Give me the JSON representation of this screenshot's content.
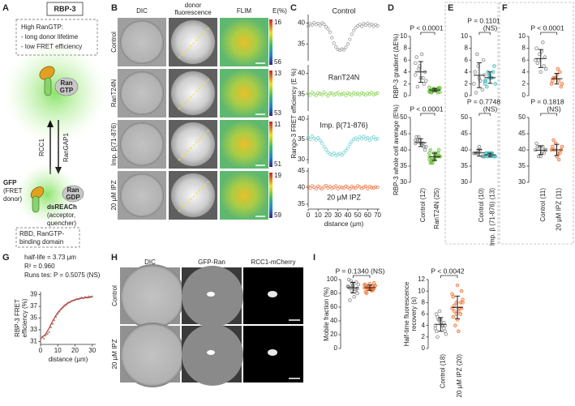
{
  "panel_labels": [
    "A",
    "B",
    "C",
    "D",
    "E",
    "F",
    "G",
    "H",
    "I"
  ],
  "panels": {
    "A": {
      "title": "RBP-3",
      "state_box": [
        "High RanGTP:",
        "- long donor lifetime",
        "- low FRET efficiency"
      ],
      "ran_gtp": [
        "Ran",
        "GTP"
      ],
      "rcc1": "RCC1",
      "rangap1": "RanGAP1",
      "gfp": [
        "GFP",
        "(FRET",
        "donor)"
      ],
      "ran_gdp": [
        "Ran",
        "GDP"
      ],
      "dsreach": [
        "dsREACh",
        "(acceptor,",
        "quencher)"
      ],
      "rbd": [
        "RBD, RanGTP-",
        "binding domain"
      ]
    },
    "B": {
      "columns": [
        [
          "DIC"
        ],
        [
          "donor",
          "fluorescence"
        ],
        [
          "FLIM"
        ]
      ],
      "colorbar_title": "E(%)",
      "rows": [
        "Control",
        "RanT24N",
        "Imp. β(71-876)",
        "20 µM IPZ"
      ],
      "colorbar_ranges": [
        [
          16,
          56
        ],
        [
          13,
          53
        ],
        [
          11,
          51
        ],
        [
          19,
          59
        ]
      ]
    },
    "H": {
      "columns": [
        "DIC",
        "GFP-Ran",
        "RCC1-mCherry"
      ],
      "rows": [
        "Control",
        "20 µM IPZ"
      ]
    }
  },
  "chart_data": [
    {
      "type": "scatter-panels",
      "ylabel": "Rango-3 FRET efficiency (E %)",
      "xlabel": "distance (µm)",
      "xlim": [
        0,
        72
      ],
      "xticks": [
        0,
        10,
        20,
        30,
        40,
        50,
        60,
        70
      ],
      "x": [
        0,
        2,
        4,
        6,
        8,
        10,
        12,
        14,
        16,
        18,
        20,
        22,
        24,
        26,
        28,
        30,
        32,
        34,
        36,
        38,
        40,
        42,
        44,
        46,
        48,
        50,
        52,
        54,
        56,
        58,
        60,
        62,
        64,
        66,
        68,
        70
      ],
      "series": [
        {
          "name": "Control",
          "color": "#a0a0a0",
          "ylim": [
            31,
            42
          ],
          "yticks": [
            35,
            40
          ],
          "values": [
            39.2,
            39.8,
            39.5,
            40.1,
            39.6,
            39.9,
            39.4,
            40.0,
            39.7,
            39.1,
            38.6,
            37.8,
            36.5,
            35.2,
            34.3,
            33.7,
            33.5,
            33.8,
            33.6,
            34.2,
            35.0,
            36.1,
            37.3,
            38.2,
            38.9,
            39.3,
            39.6,
            39.2,
            39.8,
            39.5,
            39.9,
            39.4,
            39.7,
            39.2,
            39.6,
            39.3
          ]
        },
        {
          "name": "RanT24N",
          "color": "#8fd45a",
          "ylim": [
            31,
            42
          ],
          "yticks": [
            35,
            40
          ],
          "values": [
            35.2,
            34.8,
            35.4,
            35.0,
            34.7,
            35.3,
            35.1,
            34.9,
            35.5,
            35.0,
            34.6,
            35.2,
            35.3,
            34.8,
            35.1,
            35.4,
            34.9,
            35.0,
            35.2,
            34.7,
            35.3,
            35.1,
            34.8,
            35.4,
            35.0,
            35.2,
            34.9,
            35.3,
            35.1,
            34.8,
            35.2,
            35.0,
            35.4,
            34.9,
            35.1,
            35.3
          ]
        },
        {
          "name": "Imp. β(71-876)",
          "color": "#7dd3d3",
          "ylim": [
            29,
            41
          ],
          "yticks": [
            30,
            35,
            40
          ],
          "values": [
            35.5,
            35.0,
            35.8,
            35.2,
            34.9,
            35.4,
            34.8,
            34.1,
            33.2,
            32.5,
            31.8,
            31.4,
            31.2,
            31.6,
            31.0,
            31.3,
            31.5,
            31.1,
            31.7,
            32.2,
            32.9,
            33.8,
            34.5,
            35.0,
            35.3,
            34.9,
            35.6,
            35.2,
            35.7,
            35.1,
            35.4,
            34.8,
            35.3,
            35.6,
            35.0,
            35.2
          ]
        },
        {
          "name": "20 µM IPZ",
          "color": "#f07a4a",
          "ylim": [
            34,
            46
          ],
          "yticks": [
            35,
            40,
            45
          ],
          "values": [
            40.3,
            39.8,
            40.5,
            40.1,
            39.7,
            40.4,
            40.0,
            39.6,
            40.2,
            40.6,
            39.9,
            40.3,
            39.8,
            40.1,
            40.5,
            39.7,
            40.2,
            40.0,
            39.8,
            40.4,
            40.1,
            39.6,
            40.3,
            40.0,
            39.9,
            40.5,
            40.2,
            39.8,
            40.1,
            40.4,
            39.7,
            40.3,
            40.0,
            39.9,
            40.2,
            40.1
          ]
        }
      ]
    },
    {
      "type": "strip",
      "categories": [
        "Control (12)",
        "RanT24N (25)"
      ],
      "plots": [
        {
          "ylabel": [
            "RBP-3 gradient (ΔE%)"
          ],
          "annotation": [
            "P < 0.0001"
          ],
          "ylim": [
            0,
            10
          ],
          "yticks": [
            0,
            2,
            4,
            6,
            8,
            10
          ],
          "series": [
            {
              "color": "#808080",
              "values": [
                3.5,
                5,
                2,
                6.5,
                3,
                4,
                1.5,
                7,
                2.5,
                4.5,
                3,
                5.5
              ]
            },
            {
              "color": "#6cbf3c",
              "values": [
                0.8,
                1.2,
                0.5,
                1.0,
                0.9,
                1.3,
                0.7,
                1.1,
                0.6,
                1.0,
                0.8,
                1.4,
                0.9,
                1.2,
                0.7,
                1.0,
                1.1,
                0.5,
                0.9,
                1.3,
                0.8,
                1.0,
                0.6,
                1.2,
                0.9
              ]
            }
          ]
        },
        {
          "ylabel": [
            "RBP-3 whole cell average (E%)"
          ],
          "annotation": [
            "P < 0.0001"
          ],
          "ylim": [
            30,
            50
          ],
          "yticks": [
            30,
            35,
            40,
            45,
            50
          ],
          "series": [
            {
              "color": "#808080",
              "values": [
                42,
                43,
                41,
                44,
                42,
                40,
                43,
                42,
                41,
                44,
                42,
                43
              ]
            },
            {
              "color": "#6cbf3c",
              "values": [
                38,
                37,
                39,
                36,
                38,
                40,
                37,
                39,
                38,
                36,
                38,
                37,
                39,
                38,
                40,
                37,
                38,
                36,
                39,
                38,
                37,
                38,
                39,
                37,
                38
              ]
            }
          ]
        }
      ]
    },
    {
      "type": "strip",
      "categories": [
        "Control (10)",
        "Imp. β (71-876) (13)"
      ],
      "plots": [
        {
          "annotation": [
            "P = 0.1101",
            "(NS)"
          ],
          "ylim": [
            0,
            10
          ],
          "yticks": [
            0,
            2,
            4,
            6,
            8,
            10
          ],
          "series": [
            {
              "color": "#808080",
              "values": [
                2,
                5,
                1,
                4,
                3,
                6,
                0.5,
                2.5,
                3.5,
                7
              ]
            },
            {
              "color": "#3fbcbc",
              "values": [
                2,
                3,
                4,
                2.5,
                3.5,
                5,
                1.5,
                3,
                2,
                4,
                3,
                2.5,
                3.5
              ]
            }
          ]
        },
        {
          "annotation": [
            "P = 0.7748",
            "(NS)"
          ],
          "ylim": [
            30,
            50
          ],
          "yticks": [
            30,
            35,
            40,
            45,
            50
          ],
          "series": [
            {
              "color": "#808080",
              "values": [
                39,
                40,
                38,
                39,
                41,
                38,
                39,
                40,
                38,
                39
              ]
            },
            {
              "color": "#3fbcbc",
              "values": [
                38,
                39,
                38,
                39,
                38,
                38,
                39,
                39,
                38,
                38,
                39,
                38,
                39
              ]
            }
          ]
        }
      ]
    },
    {
      "type": "strip",
      "categories": [
        "Control (11)",
        "20 µM IPZ (11)"
      ],
      "plots": [
        {
          "annotation": [
            "P < 0.0001"
          ],
          "ylim": [
            0,
            10
          ],
          "yticks": [
            0,
            2,
            4,
            6,
            8,
            10
          ],
          "series": [
            {
              "color": "#808080",
              "values": [
                6,
                7,
                5,
                8,
                4,
                6.5,
                5.5,
                7.5,
                4.5,
                6,
                9
              ]
            },
            {
              "color": "#f07030",
              "values": [
                2,
                3,
                4,
                2.5,
                3.5,
                1.5,
                3,
                4.5,
                2,
                3,
                2.5
              ]
            }
          ]
        },
        {
          "annotation": [
            "P = 0.1818",
            "(NS)"
          ],
          "ylim": [
            30,
            50
          ],
          "yticks": [
            30,
            35,
            40,
            45,
            50
          ],
          "series": [
            {
              "color": "#808080",
              "values": [
                40,
                41,
                39,
                42,
                38,
                40,
                41,
                39,
                40,
                38,
                41
              ]
            },
            {
              "color": "#f07030",
              "values": [
                40,
                42,
                39,
                41,
                38,
                40,
                43,
                39,
                41,
                40,
                37
              ]
            }
          ]
        }
      ]
    },
    {
      "type": "scatter",
      "annotations": [
        "half-life = 3.73 µm",
        "R² = 0.960",
        "Runs tes: P = 0.5075 (NS)"
      ],
      "ylabel": [
        "RBP-3 FRET",
        "efficiency (%)"
      ],
      "xlabel": "distance (µm)",
      "xlim": [
        0,
        32
      ],
      "xticks": [
        0,
        10,
        20,
        30
      ],
      "ylim": [
        30.5,
        39.5
      ],
      "yticks": [
        31,
        33,
        35,
        37,
        39
      ],
      "x": [
        0,
        1,
        2,
        3,
        4,
        5,
        6,
        7,
        8,
        9,
        10,
        11,
        12,
        13,
        14,
        15,
        16,
        17,
        18,
        19,
        20,
        21,
        22,
        23,
        24,
        25,
        26,
        27,
        28,
        29,
        30
      ],
      "series": [
        {
          "style": "dots",
          "color": "#999999",
          "values": [
            31.3,
            31.8,
            31.5,
            32.0,
            32.3,
            32.6,
            33.4,
            34.0,
            34.6,
            35.2,
            35.7,
            36.1,
            36.5,
            36.8,
            37.1,
            37.3,
            37.6,
            37.7,
            37.9,
            38.0,
            38.1,
            38.3,
            38.2,
            38.4,
            38.5,
            38.4,
            38.6,
            38.5,
            38.7,
            38.6,
            38.7
          ]
        },
        {
          "style": "line",
          "color": "#c0392b",
          "values": [
            31.5,
            31.7,
            32.0,
            32.3,
            32.8,
            33.3,
            33.9,
            34.5,
            35.0,
            35.5,
            35.9,
            36.3,
            36.6,
            36.9,
            37.2,
            37.4,
            37.6,
            37.7,
            37.9,
            38.0,
            38.1,
            38.2,
            38.3,
            38.3,
            38.4,
            38.4,
            38.5,
            38.5,
            38.5,
            38.6,
            38.6
          ]
        }
      ]
    },
    {
      "type": "strip",
      "categories": [
        "Control (18)",
        "20 µM IPZ (20)"
      ],
      "plots": [
        {
          "ylabel": [
            "Mobile fraction (%)"
          ],
          "annotation": [
            "P = 0.1340 (NS)"
          ],
          "ylim": [
            0,
            100
          ],
          "yticks": [
            0,
            20,
            40,
            60,
            80,
            100
          ],
          "series": [
            {
              "color": "#808080",
              "values": [
                90,
                95,
                85,
                100,
                92,
                80,
                88,
                75,
                93,
                98,
                86,
                90,
                84,
                96,
                89,
                91,
                87,
                70
              ]
            },
            {
              "color": "#f07030",
              "values": [
                88,
                90,
                85,
                92,
                87,
                95,
                80,
                89,
                91,
                86,
                84,
                93,
                88,
                90,
                82,
                94,
                87,
                89,
                85,
                91
              ]
            }
          ]
        },
        {
          "ylabel": [
            "Half-time fluorescence",
            "recovery (s)"
          ],
          "annotation": [
            "P < 0.0042"
          ],
          "ylim": [
            0,
            12
          ],
          "yticks": [
            0,
            2,
            4,
            6,
            8,
            10,
            12
          ],
          "series": [
            {
              "color": "#808080",
              "values": [
                4,
                5,
                3.5,
                6,
                4.5,
                3,
                5.5,
                4,
                2.5,
                5,
                4,
                3.5,
                6.5,
                4.5,
                3,
                5,
                4,
                2
              ]
            },
            {
              "color": "#f07030",
              "values": [
                7,
                8,
                6,
                9,
                5,
                10,
                7.5,
                6.5,
                8.5,
                4,
                7,
                9.5,
                6,
                8,
                5.5,
                11,
                7,
                6.5,
                3,
                8
              ]
            }
          ]
        }
      ]
    }
  ]
}
